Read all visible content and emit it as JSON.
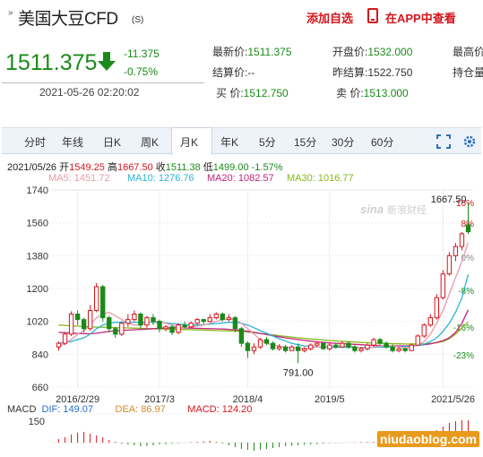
{
  "header": {
    "nav_glyph": "»",
    "title": "美国大豆CFD",
    "title_sub": "(S)",
    "add_favorite": "添加自选",
    "view_in_app": "在APP中查看"
  },
  "quote": {
    "price": "1511.375",
    "change": "-11.375",
    "change_pct": "-0.75%",
    "timestamp": "2021-05-26 02:20:02",
    "fields": [
      {
        "label": "最新价:",
        "value": "1511.375",
        "tone": "g"
      },
      {
        "label": "开盘价:",
        "value": "1532.000",
        "tone": "g"
      },
      {
        "label": "最高价",
        "value": "",
        "tone": "n"
      },
      {
        "label": "结算价:",
        "value": "--",
        "tone": "n"
      },
      {
        "label": "昨结算:",
        "value": "1522.750",
        "tone": "n"
      },
      {
        "label": "持仓量",
        "value": "",
        "tone": "n"
      },
      {
        "label": "买  价:",
        "value": "1512.750",
        "tone": "g"
      },
      {
        "label": "卖  价:",
        "value": "1513.000",
        "tone": "g"
      }
    ]
  },
  "tabs": [
    "分时",
    "年线",
    "日K",
    "周K",
    "月K",
    "年K",
    "5分",
    "15分",
    "30分",
    "60分"
  ],
  "active_tab": "月K",
  "colors": {
    "up": "#d5151b",
    "down": "#1a8a1a",
    "ma5": "#e89aab",
    "ma10": "#2ab3d8",
    "ma20": "#c3237a",
    "ma30": "#88b817"
  },
  "bar_info": {
    "date": "2021/05/26",
    "open_label": "开",
    "open": "1549.25",
    "high_label": "高",
    "high": "1667.50",
    "close_label": "收",
    "close": "1511.38",
    "low_label": "低",
    "low": "1499.00",
    "pct": "-1.57%"
  },
  "ma_legend": [
    {
      "name": "MA5:",
      "value": "1451.72",
      "color": "#e89aab"
    },
    {
      "name": "MA10:",
      "value": "1276.76",
      "color": "#2ab3d8"
    },
    {
      "name": "MA20:",
      "value": "1082.57",
      "color": "#c3237a"
    },
    {
      "name": "MA30:",
      "value": "1016.77",
      "color": "#88b817"
    }
  ],
  "macd_legend": [
    {
      "name": "MACD",
      "value": "",
      "color": "#333"
    },
    {
      "name": "DIF:",
      "value": "149.07",
      "color": "#2a6fc4"
    },
    {
      "name": "DEA:",
      "value": "86.97",
      "color": "#d28a2a"
    },
    {
      "name": "MACD:",
      "value": "124.20",
      "color": "#d5151b"
    }
  ],
  "watermark": "新浪财经",
  "watermark_logo": "sina",
  "site_watermark": "niudaoblog.com",
  "chart_data": {
    "type": "candlestick",
    "y_ticks": [
      "1740",
      "1560",
      "1380",
      "1200",
      "1020",
      "840",
      "660"
    ],
    "ylim": [
      660,
      1740
    ],
    "right_ticks": [
      "16%",
      "8%",
      "0%",
      "-8%",
      "-16%",
      "-23%"
    ],
    "x_ticks": [
      "2016/2/29",
      "2017/3",
      "2018/4",
      "2019/5",
      "2021/5/26"
    ],
    "annotations": [
      {
        "text": "1667.50",
        "index": 65,
        "value": 1667.5
      },
      {
        "text": "791.00",
        "index": 38,
        "value": 791
      }
    ],
    "candles": [
      [
        880,
        900,
        860,
        910
      ],
      [
        900,
        950,
        890,
        960
      ],
      [
        950,
        1060,
        940,
        1075
      ],
      [
        1060,
        1030,
        1000,
        1080
      ],
      [
        1030,
        980,
        960,
        1040
      ],
      [
        980,
        1080,
        970,
        1110
      ],
      [
        1080,
        1210,
        1070,
        1230
      ],
      [
        1210,
        1040,
        1020,
        1220
      ],
      [
        1040,
        980,
        960,
        1050
      ],
      [
        980,
        950,
        930,
        990
      ],
      [
        950,
        1010,
        940,
        1020
      ],
      [
        1010,
        1030,
        990,
        1060
      ],
      [
        1030,
        1060,
        1020,
        1080
      ],
      [
        1060,
        1000,
        980,
        1070
      ],
      [
        1000,
        1040,
        985,
        1050
      ],
      [
        1040,
        1020,
        1000,
        1060
      ],
      [
        1020,
        980,
        960,
        1030
      ],
      [
        980,
        990,
        965,
        1000
      ],
      [
        990,
        960,
        945,
        1000
      ],
      [
        960,
        1000,
        950,
        1010
      ],
      [
        1000,
        990,
        980,
        1020
      ],
      [
        990,
        1010,
        985,
        1020
      ],
      [
        1010,
        1030,
        1000,
        1040
      ],
      [
        1030,
        1020,
        1005,
        1035
      ],
      [
        1020,
        1040,
        1015,
        1060
      ],
      [
        1040,
        1060,
        1030,
        1070
      ],
      [
        1060,
        1030,
        1020,
        1070
      ],
      [
        1030,
        1040,
        1020,
        1060
      ],
      [
        1040,
        980,
        960,
        1050
      ],
      [
        980,
        900,
        880,
        990
      ],
      [
        900,
        860,
        820,
        910
      ],
      [
        860,
        880,
        840,
        900
      ],
      [
        880,
        920,
        870,
        930
      ],
      [
        920,
        900,
        890,
        935
      ],
      [
        900,
        870,
        860,
        910
      ],
      [
        870,
        880,
        860,
        895
      ],
      [
        880,
        860,
        850,
        890
      ],
      [
        860,
        880,
        860,
        890
      ],
      [
        880,
        860,
        791,
        900
      ],
      [
        860,
        870,
        850,
        880
      ],
      [
        870,
        890,
        860,
        900
      ],
      [
        890,
        900,
        880,
        910
      ],
      [
        900,
        870,
        865,
        910
      ],
      [
        870,
        890,
        860,
        900
      ],
      [
        890,
        880,
        870,
        900
      ],
      [
        880,
        900,
        875,
        910
      ],
      [
        900,
        880,
        870,
        910
      ],
      [
        880,
        860,
        850,
        890
      ],
      [
        860,
        870,
        850,
        880
      ],
      [
        870,
        890,
        860,
        900
      ],
      [
        890,
        920,
        880,
        930
      ],
      [
        920,
        900,
        890,
        930
      ],
      [
        900,
        880,
        870,
        910
      ],
      [
        880,
        860,
        850,
        895
      ],
      [
        860,
        870,
        850,
        880
      ],
      [
        870,
        860,
        850,
        875
      ],
      [
        860,
        890,
        860,
        900
      ],
      [
        890,
        940,
        885,
        950
      ],
      [
        940,
        1000,
        930,
        1010
      ],
      [
        1000,
        1040,
        990,
        1060
      ],
      [
        1040,
        1150,
        1030,
        1170
      ],
      [
        1150,
        1280,
        1140,
        1300
      ],
      [
        1280,
        1380,
        1270,
        1400
      ],
      [
        1380,
        1430,
        1350,
        1450
      ],
      [
        1430,
        1500,
        1410,
        1510
      ],
      [
        1549,
        1511,
        1499,
        1667
      ]
    ],
    "ma5": [
      880,
      900,
      920,
      950,
      970,
      1000,
      1040,
      1060,
      1070,
      1050,
      1030,
      1010,
      1000,
      1000,
      1010,
      1020,
      1020,
      1010,
      1000,
      990,
      985,
      990,
      995,
      1000,
      1010,
      1020,
      1030,
      1035,
      1030,
      1010,
      980,
      950,
      920,
      900,
      890,
      885,
      880,
      875,
      870,
      870,
      875,
      880,
      880,
      880,
      885,
      885,
      885,
      880,
      875,
      875,
      880,
      885,
      890,
      885,
      880,
      875,
      880,
      890,
      910,
      950,
      1010,
      1080,
      1170,
      1260,
      1350,
      1452
    ],
    "ma10": [
      900,
      905,
      910,
      920,
      930,
      950,
      980,
      1000,
      1010,
      1015,
      1015,
      1015,
      1015,
      1015,
      1015,
      1015,
      1015,
      1012,
      1008,
      1005,
      1002,
      1000,
      1000,
      1002,
      1005,
      1008,
      1012,
      1015,
      1015,
      1010,
      1000,
      985,
      970,
      955,
      940,
      925,
      912,
      900,
      892,
      886,
      882,
      880,
      879,
      878,
      878,
      878,
      878,
      878,
      878,
      878,
      878,
      879,
      880,
      881,
      882,
      883,
      885,
      888,
      895,
      910,
      930,
      965,
      1010,
      1070,
      1150,
      1277
    ],
    "ma20": [
      960,
      958,
      956,
      954,
      953,
      952,
      955,
      960,
      965,
      968,
      970,
      972,
      974,
      976,
      978,
      980,
      982,
      984,
      985,
      985,
      984,
      983,
      982,
      981,
      980,
      979,
      978,
      976,
      974,
      970,
      966,
      960,
      954,
      948,
      942,
      936,
      930,
      925,
      920,
      916,
      912,
      908,
      905,
      902,
      900,
      898,
      896,
      894,
      892,
      890,
      889,
      888,
      887,
      886,
      886,
      886,
      887,
      889,
      892,
      897,
      905,
      915,
      930,
      960,
      1010,
      1083
    ],
    "ma30": [
      1000,
      998,
      996,
      994,
      992,
      990,
      989,
      988,
      987,
      986,
      985,
      984,
      983,
      982,
      981,
      980,
      979,
      978,
      977,
      976,
      975,
      974,
      973,
      972,
      971,
      970,
      969,
      968,
      967,
      965,
      962,
      958,
      954,
      950,
      946,
      942,
      938,
      934,
      930,
      927,
      924,
      921,
      918,
      915,
      913,
      911,
      909,
      907,
      905,
      903,
      901,
      900,
      899,
      898,
      897,
      896,
      896,
      896,
      897,
      899,
      903,
      910,
      925,
      950,
      985,
      1017
    ],
    "macd_hist": [
      20,
      30,
      45,
      55,
      60,
      50,
      40,
      30,
      15,
      5,
      -5,
      -10,
      -15,
      -20,
      -18,
      -15,
      -10,
      -8,
      -5,
      -3,
      0,
      3,
      5,
      8,
      10,
      5,
      -5,
      -15,
      -25,
      -35,
      -40,
      -45,
      -40,
      -35,
      -30,
      -25,
      -20,
      -18,
      -15,
      -12,
      -10,
      -8,
      -5,
      -3,
      -2,
      -1,
      0,
      2,
      3,
      4,
      5,
      6,
      5,
      4,
      3,
      2,
      5,
      15,
      30,
      50,
      70,
      90,
      110,
      120,
      125,
      124
    ]
  }
}
